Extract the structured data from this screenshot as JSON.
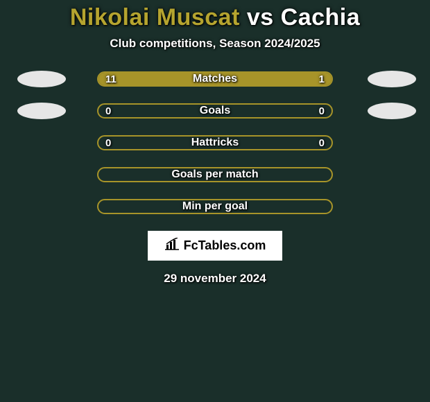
{
  "background_color": "#1a2f2a",
  "title": {
    "player1": "Nikolai Muscat",
    "vs": "vs",
    "player2": "Cachia",
    "player1_color": "#b5a42f",
    "rest_color": "#ffffff",
    "fontsize": 34
  },
  "subtitle": {
    "text": "Club competitions, Season 2024/2025",
    "fontsize": 17
  },
  "bar_style": {
    "track_width": 340,
    "track_height": 22,
    "border_radius": 12,
    "border_color": "#a79429",
    "left_fill_color": "#a79429",
    "right_fill_color": "#a79429",
    "label_fontsize": 16
  },
  "rows": [
    {
      "label": "Matches",
      "left_val": "11",
      "right_val": "1",
      "left_pct": 91.7,
      "right_pct": 8.3,
      "show_left_avatar": true,
      "show_right_avatar": true
    },
    {
      "label": "Goals",
      "left_val": "0",
      "right_val": "0",
      "left_pct": 0,
      "right_pct": 0,
      "show_left_avatar": true,
      "show_right_avatar": true
    },
    {
      "label": "Hattricks",
      "left_val": "0",
      "right_val": "0",
      "left_pct": 0,
      "right_pct": 0,
      "show_left_avatar": false,
      "show_right_avatar": false
    },
    {
      "label": "Goals per match",
      "left_val": "",
      "right_val": "",
      "left_pct": 0,
      "right_pct": 0,
      "show_left_avatar": false,
      "show_right_avatar": false
    },
    {
      "label": "Min per goal",
      "left_val": "",
      "right_val": "",
      "left_pct": 0,
      "right_pct": 0,
      "show_left_avatar": false,
      "show_right_avatar": false
    }
  ],
  "brand": {
    "text": "FcTables.com",
    "icon_name": "bar-chart-icon",
    "bg_color": "#ffffff",
    "text_color": "#000000",
    "fontsize": 18
  },
  "date": {
    "text": "29 november 2024",
    "fontsize": 17
  },
  "avatar_style": {
    "width": 70,
    "height": 24,
    "bg": "#e6e6e6"
  }
}
